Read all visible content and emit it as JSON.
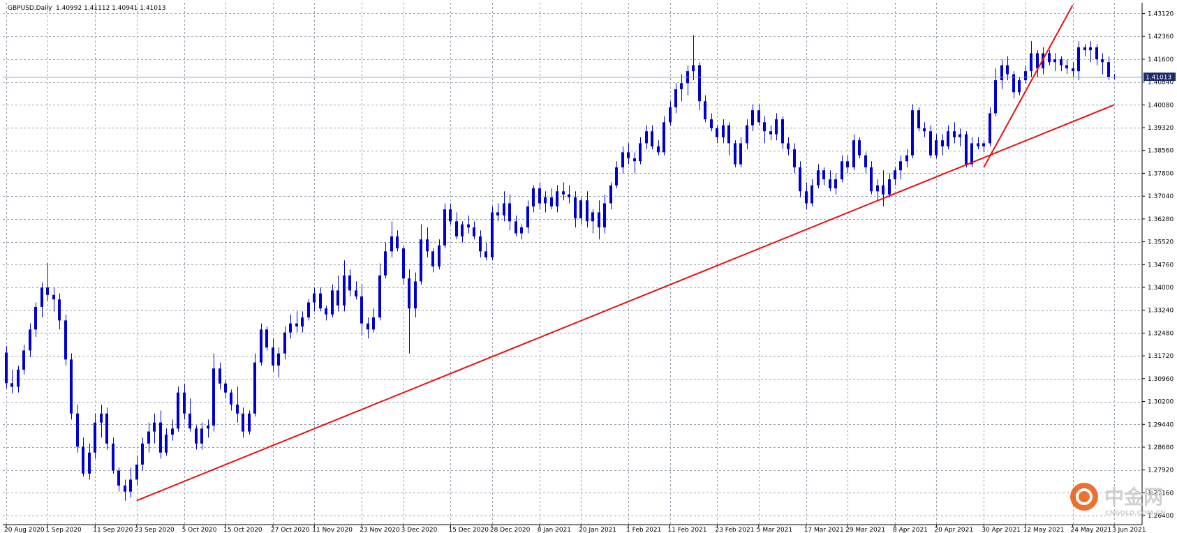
{
  "header": {
    "symbol": "GBPUSD,Daily",
    "ohlc": "1.40992 1.41112 1.40941 1.41013"
  },
  "current_price_label": "1.41013",
  "watermark": {
    "brand": "中金网",
    "site": "CNGOLD.COM.CN"
  },
  "colors": {
    "candle": "#0000cc",
    "grid": "#9aa3b3",
    "trendline": "#e81010",
    "price_line": "#8596b8",
    "price_label_bg": "#1a2a6c",
    "watermark_orange": "#e8590c"
  },
  "chart_data": {
    "type": "candlestick",
    "title": "",
    "xlabel": "",
    "ylabel": "",
    "ylim": [
      1.261,
      1.4348
    ],
    "grid": true,
    "y_ticks": [
      "1.43120",
      "1.42360",
      "1.41600",
      "1.40840",
      "1.40080",
      "1.39320",
      "1.38560",
      "1.37800",
      "1.37040",
      "1.36280",
      "1.35520",
      "1.34760",
      "1.34000",
      "1.33240",
      "1.32480",
      "1.31720",
      "1.30960",
      "1.30200",
      "1.29440",
      "1.28680",
      "1.27920",
      "1.27160",
      "1.26400"
    ],
    "x_ticks": [
      "20 Aug 2020",
      "1 Sep 2020",
      "11 Sep 2020",
      "23 Sep 2020",
      "5 Oct 2020",
      "15 Oct 2020",
      "27 Oct 2020",
      "11 Nov 2020",
      "23 Nov 2020",
      "3 Dec 2020",
      "15 Dec 2020",
      "28 Dec 2020",
      "8 Jan 2021",
      "20 Jan 2021",
      "1 Feb 2021",
      "11 Feb 2021",
      "23 Feb 2021",
      "5 Mar 2021",
      "17 Mar 2021",
      "29 Mar 2021",
      "8 Apr 2021",
      "20 Apr 2021",
      "30 Apr 2021",
      "12 May 2021",
      "24 May 2021",
      "3 Jun 2021"
    ],
    "current_price": 1.41013,
    "trendlines": [
      {
        "from": [
          "23 Sep 2020",
          1.269
        ],
        "to": [
          "3 Jun 2021",
          1.4008
        ]
      },
      {
        "from": [
          "30 Apr 2021",
          1.38
        ],
        "to": [
          "24 May 2021",
          1.434
        ]
      }
    ],
    "ohlc": [
      [
        1.3183,
        1.3205,
        1.3064,
        1.3081
      ],
      [
        1.3081,
        1.3126,
        1.3047,
        1.3069
      ],
      [
        1.3069,
        1.3139,
        1.305,
        1.3126
      ],
      [
        1.3126,
        1.321,
        1.311,
        1.319
      ],
      [
        1.319,
        1.328,
        1.3168,
        1.326
      ],
      [
        1.326,
        1.335,
        1.3235,
        1.3335
      ],
      [
        1.3335,
        1.3417,
        1.33,
        1.34
      ],
      [
        1.34,
        1.3482,
        1.3355,
        1.3375
      ],
      [
        1.3375,
        1.34,
        1.332,
        1.336
      ],
      [
        1.336,
        1.338,
        1.326,
        1.329
      ],
      [
        1.329,
        1.331,
        1.314,
        1.316
      ],
      [
        1.316,
        1.318,
        1.296,
        1.298
      ],
      [
        1.298,
        1.301,
        1.285,
        1.287
      ],
      [
        1.287,
        1.29,
        1.277,
        1.278
      ],
      [
        1.278,
        1.288,
        1.276,
        1.285
      ],
      [
        1.285,
        1.298,
        1.283,
        1.295
      ],
      [
        1.295,
        1.301,
        1.29,
        1.298
      ],
      [
        1.298,
        1.3,
        1.286,
        1.288
      ],
      [
        1.288,
        1.29,
        1.278,
        1.279
      ],
      [
        1.279,
        1.28,
        1.272,
        1.274
      ],
      [
        1.274,
        1.276,
        1.269,
        1.272
      ],
      [
        1.272,
        1.28,
        1.27,
        1.276
      ],
      [
        1.276,
        1.284,
        1.274,
        1.281
      ],
      [
        1.281,
        1.29,
        1.279,
        1.288
      ],
      [
        1.288,
        1.295,
        1.285,
        1.292
      ],
      [
        1.292,
        1.298,
        1.288,
        1.295
      ],
      [
        1.295,
        1.299,
        1.283,
        1.285
      ],
      [
        1.285,
        1.293,
        1.284,
        1.291
      ],
      [
        1.291,
        1.296,
        1.289,
        1.293
      ],
      [
        1.293,
        1.307,
        1.292,
        1.305
      ],
      [
        1.305,
        1.308,
        1.296,
        1.298
      ],
      [
        1.298,
        1.303,
        1.292,
        1.293
      ],
      [
        1.293,
        1.294,
        1.286,
        1.288
      ],
      [
        1.288,
        1.295,
        1.286,
        1.293
      ],
      [
        1.293,
        1.296,
        1.29,
        1.294
      ],
      [
        1.294,
        1.318,
        1.292,
        1.313
      ],
      [
        1.313,
        1.315,
        1.306,
        1.308
      ],
      [
        1.308,
        1.309,
        1.303,
        1.305
      ],
      [
        1.305,
        1.306,
        1.299,
        1.301
      ],
      [
        1.301,
        1.307,
        1.295,
        1.298
      ],
      [
        1.298,
        1.3,
        1.29,
        1.292
      ],
      [
        1.292,
        1.299,
        1.291,
        1.298
      ],
      [
        1.298,
        1.318,
        1.297,
        1.315
      ],
      [
        1.315,
        1.328,
        1.314,
        1.326
      ],
      [
        1.326,
        1.327,
        1.319,
        1.32
      ],
      [
        1.32,
        1.323,
        1.312,
        1.314
      ],
      [
        1.314,
        1.32,
        1.31,
        1.318
      ],
      [
        1.318,
        1.327,
        1.316,
        1.325
      ],
      [
        1.325,
        1.331,
        1.323,
        1.328
      ],
      [
        1.328,
        1.332,
        1.325,
        1.327
      ],
      [
        1.327,
        1.332,
        1.325,
        1.33
      ],
      [
        1.33,
        1.336,
        1.329,
        1.335
      ],
      [
        1.335,
        1.34,
        1.332,
        1.338
      ],
      [
        1.338,
        1.34,
        1.332,
        1.333
      ],
      [
        1.333,
        1.334,
        1.329,
        1.331
      ],
      [
        1.331,
        1.341,
        1.33,
        1.339
      ],
      [
        1.339,
        1.344,
        1.332,
        1.334
      ],
      [
        1.334,
        1.349,
        1.332,
        1.344
      ],
      [
        1.344,
        1.346,
        1.337,
        1.339
      ],
      [
        1.339,
        1.342,
        1.336,
        1.337
      ],
      [
        1.337,
        1.341,
        1.324,
        1.328
      ],
      [
        1.328,
        1.33,
        1.323,
        1.326
      ],
      [
        1.326,
        1.333,
        1.325,
        1.33
      ],
      [
        1.33,
        1.348,
        1.329,
        1.344
      ],
      [
        1.344,
        1.355,
        1.343,
        1.352
      ],
      [
        1.352,
        1.362,
        1.35,
        1.357
      ],
      [
        1.357,
        1.359,
        1.352,
        1.353
      ],
      [
        1.353,
        1.354,
        1.341,
        1.343
      ],
      [
        1.343,
        1.346,
        1.318,
        1.333
      ],
      [
        1.333,
        1.345,
        1.33,
        1.342
      ],
      [
        1.342,
        1.361,
        1.341,
        1.356
      ],
      [
        1.356,
        1.36,
        1.35,
        1.352
      ],
      [
        1.352,
        1.353,
        1.345,
        1.347
      ],
      [
        1.347,
        1.356,
        1.346,
        1.354
      ],
      [
        1.354,
        1.368,
        1.353,
        1.366
      ],
      [
        1.366,
        1.368,
        1.361,
        1.362
      ],
      [
        1.362,
        1.365,
        1.356,
        1.357
      ],
      [
        1.357,
        1.362,
        1.355,
        1.361
      ],
      [
        1.361,
        1.364,
        1.358,
        1.36
      ],
      [
        1.36,
        1.362,
        1.356,
        1.357
      ],
      [
        1.357,
        1.359,
        1.35,
        1.352
      ],
      [
        1.352,
        1.355,
        1.349,
        1.35
      ],
      [
        1.35,
        1.367,
        1.349,
        1.365
      ],
      [
        1.365,
        1.368,
        1.362,
        1.364
      ],
      [
        1.364,
        1.372,
        1.362,
        1.368
      ],
      [
        1.368,
        1.371,
        1.359,
        1.362
      ],
      [
        1.362,
        1.364,
        1.357,
        1.358
      ],
      [
        1.358,
        1.361,
        1.356,
        1.36
      ],
      [
        1.36,
        1.369,
        1.358,
        1.367
      ],
      [
        1.367,
        1.374,
        1.365,
        1.373
      ],
      [
        1.373,
        1.375,
        1.366,
        1.368
      ],
      [
        1.368,
        1.372,
        1.365,
        1.37
      ],
      [
        1.37,
        1.373,
        1.366,
        1.367
      ],
      [
        1.367,
        1.374,
        1.365,
        1.372
      ],
      [
        1.372,
        1.375,
        1.369,
        1.371
      ],
      [
        1.371,
        1.374,
        1.368,
        1.37
      ],
      [
        1.37,
        1.372,
        1.36,
        1.363
      ],
      [
        1.363,
        1.37,
        1.361,
        1.369
      ],
      [
        1.369,
        1.372,
        1.36,
        1.362
      ],
      [
        1.362,
        1.366,
        1.358,
        1.365
      ],
      [
        1.365,
        1.369,
        1.356,
        1.36
      ],
      [
        1.36,
        1.371,
        1.358,
        1.368
      ],
      [
        1.368,
        1.375,
        1.366,
        1.374
      ],
      [
        1.374,
        1.382,
        1.373,
        1.38
      ],
      [
        1.38,
        1.387,
        1.378,
        1.385
      ],
      [
        1.385,
        1.388,
        1.381,
        1.383
      ],
      [
        1.383,
        1.385,
        1.378,
        1.382
      ],
      [
        1.382,
        1.39,
        1.381,
        1.388
      ],
      [
        1.388,
        1.394,
        1.386,
        1.392
      ],
      [
        1.392,
        1.394,
        1.386,
        1.387
      ],
      [
        1.387,
        1.389,
        1.384,
        1.385
      ],
      [
        1.385,
        1.397,
        1.384,
        1.395
      ],
      [
        1.395,
        1.402,
        1.394,
        1.4
      ],
      [
        1.4,
        1.408,
        1.398,
        1.406
      ],
      [
        1.406,
        1.411,
        1.402,
        1.408
      ],
      [
        1.408,
        1.414,
        1.404,
        1.412
      ],
      [
        1.412,
        1.424,
        1.409,
        1.414
      ],
      [
        1.414,
        1.415,
        1.399,
        1.402
      ],
      [
        1.402,
        1.404,
        1.395,
        1.396
      ],
      [
        1.396,
        1.398,
        1.392,
        1.393
      ],
      [
        1.393,
        1.394,
        1.388,
        1.39
      ],
      [
        1.39,
        1.396,
        1.388,
        1.394
      ],
      [
        1.394,
        1.395,
        1.384,
        1.388
      ],
      [
        1.388,
        1.389,
        1.38,
        1.381
      ],
      [
        1.381,
        1.39,
        1.38,
        1.388
      ],
      [
        1.388,
        1.396,
        1.386,
        1.394
      ],
      [
        1.394,
        1.401,
        1.392,
        1.399
      ],
      [
        1.399,
        1.401,
        1.394,
        1.395
      ],
      [
        1.395,
        1.397,
        1.388,
        1.392
      ],
      [
        1.392,
        1.394,
        1.389,
        1.391
      ],
      [
        1.391,
        1.398,
        1.389,
        1.396
      ],
      [
        1.396,
        1.397,
        1.386,
        1.388
      ],
      [
        1.388,
        1.39,
        1.384,
        1.386
      ],
      [
        1.386,
        1.388,
        1.378,
        1.38
      ],
      [
        1.38,
        1.382,
        1.37,
        1.372
      ],
      [
        1.372,
        1.375,
        1.366,
        1.368
      ],
      [
        1.368,
        1.376,
        1.367,
        1.374
      ],
      [
        1.374,
        1.381,
        1.373,
        1.379
      ],
      [
        1.379,
        1.38,
        1.374,
        1.376
      ],
      [
        1.376,
        1.379,
        1.372,
        1.373
      ],
      [
        1.373,
        1.378,
        1.371,
        1.376
      ],
      [
        1.376,
        1.384,
        1.375,
        1.382
      ],
      [
        1.382,
        1.384,
        1.378,
        1.38
      ],
      [
        1.38,
        1.391,
        1.379,
        1.389
      ],
      [
        1.389,
        1.39,
        1.383,
        1.384
      ],
      [
        1.384,
        1.385,
        1.378,
        1.38
      ],
      [
        1.38,
        1.382,
        1.371,
        1.372
      ],
      [
        1.372,
        1.376,
        1.369,
        1.374
      ],
      [
        1.374,
        1.379,
        1.367,
        1.371
      ],
      [
        1.371,
        1.378,
        1.37,
        1.376
      ],
      [
        1.376,
        1.38,
        1.374,
        1.379
      ],
      [
        1.379,
        1.384,
        1.376,
        1.382
      ],
      [
        1.382,
        1.386,
        1.38,
        1.384
      ],
      [
        1.384,
        1.401,
        1.383,
        1.399
      ],
      [
        1.399,
        1.4,
        1.392,
        1.393
      ],
      [
        1.393,
        1.395,
        1.39,
        1.392
      ],
      [
        1.392,
        1.394,
        1.383,
        1.384
      ],
      [
        1.384,
        1.391,
        1.383,
        1.389
      ],
      [
        1.389,
        1.391,
        1.384,
        1.387
      ],
      [
        1.387,
        1.394,
        1.386,
        1.392
      ],
      [
        1.392,
        1.395,
        1.388,
        1.39
      ],
      [
        1.39,
        1.393,
        1.387,
        1.391
      ],
      [
        1.391,
        1.392,
        1.38,
        1.381
      ],
      [
        1.381,
        1.39,
        1.38,
        1.388
      ],
      [
        1.388,
        1.39,
        1.386,
        1.387
      ],
      [
        1.387,
        1.389,
        1.385,
        1.388
      ],
      [
        1.388,
        1.4,
        1.387,
        1.398
      ],
      [
        1.398,
        1.413,
        1.397,
        1.409
      ],
      [
        1.409,
        1.416,
        1.406,
        1.414
      ],
      [
        1.414,
        1.417,
        1.409,
        1.411
      ],
      [
        1.411,
        1.412,
        1.403,
        1.405
      ],
      [
        1.405,
        1.41,
        1.404,
        1.409
      ],
      [
        1.409,
        1.414,
        1.408,
        1.412
      ],
      [
        1.412,
        1.422,
        1.41,
        1.418
      ],
      [
        1.418,
        1.419,
        1.41,
        1.413
      ],
      [
        1.413,
        1.42,
        1.411,
        1.418
      ],
      [
        1.418,
        1.419,
        1.414,
        1.415
      ],
      [
        1.415,
        1.418,
        1.412,
        1.416
      ],
      [
        1.416,
        1.417,
        1.412,
        1.414
      ],
      [
        1.414,
        1.416,
        1.411,
        1.413
      ],
      [
        1.413,
        1.415,
        1.41,
        1.412
      ],
      [
        1.412,
        1.422,
        1.409,
        1.42
      ],
      [
        1.42,
        1.421,
        1.417,
        1.419
      ],
      [
        1.419,
        1.422,
        1.415,
        1.42
      ],
      [
        1.42,
        1.421,
        1.414,
        1.416
      ],
      [
        1.416,
        1.418,
        1.411,
        1.415
      ],
      [
        1.415,
        1.417,
        1.409,
        1.41
      ],
      [
        1.40992,
        1.41112,
        1.40941,
        1.41013
      ]
    ]
  }
}
